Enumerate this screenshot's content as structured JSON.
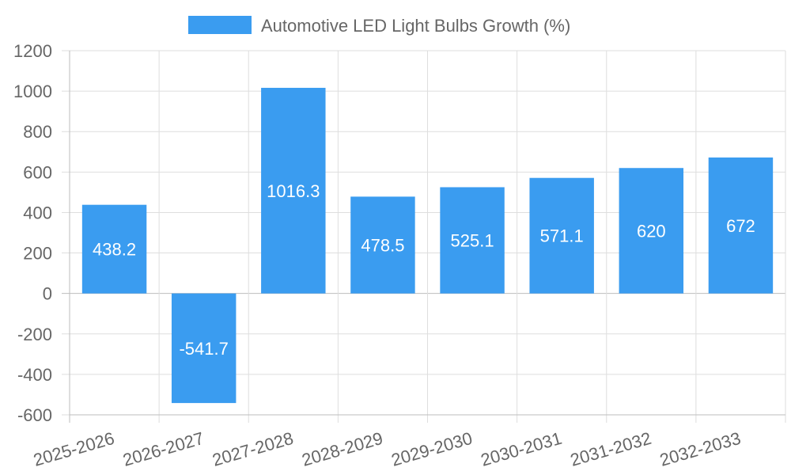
{
  "chart_data": {
    "type": "bar",
    "title": "",
    "xlabel": "",
    "ylabel": "",
    "categories": [
      "2025-2026",
      "2026-2027",
      "2027-2028",
      "2028-2029",
      "2029-2030",
      "2030-2031",
      "2031-2032",
      "2032-2033"
    ],
    "series": [
      {
        "name": "Automotive LED Light Bulbs Growth (%)",
        "values": [
          438.2,
          -541.7,
          1016.3,
          478.5,
          525.1,
          571.1,
          620,
          672
        ],
        "color": "#3a9cf0"
      }
    ],
    "ylim": [
      -600,
      1200
    ],
    "yticks": [
      1200,
      1000,
      800,
      600,
      400,
      200,
      0,
      -200,
      -400,
      -600
    ],
    "grid": true,
    "legend_position": "top-center",
    "data_labels": true
  }
}
